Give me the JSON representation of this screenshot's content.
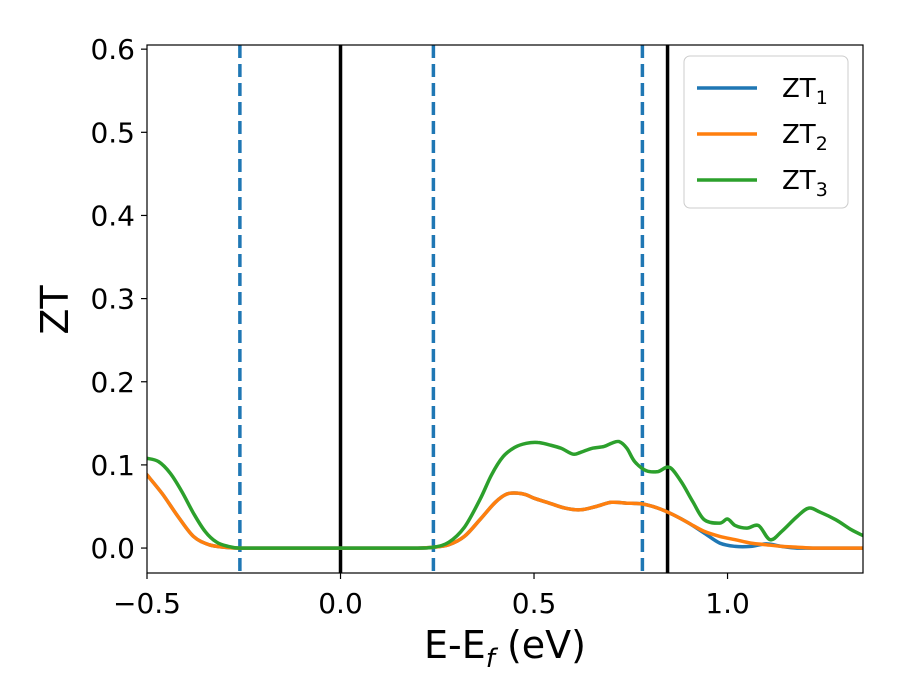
{
  "chart_data": {
    "type": "line",
    "title": "",
    "xlabel": "E-E",
    "xlabel_sub": "f",
    "xlabel_unit": " (eV)",
    "ylabel": "ZT",
    "xlim": [
      -0.5,
      1.35
    ],
    "ylim": [
      -0.03,
      0.605
    ],
    "xticks": [
      -0.5,
      0.0,
      0.5,
      1.0
    ],
    "xtick_labels": [
      "−0.5",
      "0.0",
      "0.5",
      "1.0"
    ],
    "yticks": [
      0.0,
      0.1,
      0.2,
      0.3,
      0.4,
      0.5,
      0.6
    ],
    "ytick_labels": [
      "0.0",
      "0.1",
      "0.2",
      "0.3",
      "0.4",
      "0.5",
      "0.6"
    ],
    "grid": false,
    "legend_position": "top-right",
    "vlines": [
      {
        "x": -0.26,
        "style": "dashed",
        "color": "#1f77b4"
      },
      {
        "x": 0.0,
        "style": "solid",
        "color": "#000000"
      },
      {
        "x": 0.24,
        "style": "dashed",
        "color": "#1f77b4"
      },
      {
        "x": 0.78,
        "style": "dashed",
        "color": "#1f77b4"
      },
      {
        "x": 0.845,
        "style": "solid",
        "color": "#000000"
      }
    ],
    "series": [
      {
        "name": "ZT",
        "sub": "1",
        "color": "#1f77b4",
        "x": [
          -0.5,
          -0.46,
          -0.42,
          -0.38,
          -0.34,
          -0.3,
          -0.26,
          -0.2,
          -0.1,
          0.0,
          0.1,
          0.2,
          0.24,
          0.28,
          0.32,
          0.36,
          0.4,
          0.43,
          0.46,
          0.48,
          0.5,
          0.54,
          0.58,
          0.62,
          0.66,
          0.7,
          0.74,
          0.78,
          0.82,
          0.86,
          0.9,
          0.94,
          0.98,
          1.02,
          1.06,
          1.1,
          1.14,
          1.18,
          1.22,
          1.26,
          1.3,
          1.35
        ],
        "y": [
          0.088,
          0.065,
          0.038,
          0.014,
          0.004,
          0.001,
          0.0,
          0.0,
          0.0,
          0.0,
          0.0,
          0.0,
          0.001,
          0.004,
          0.014,
          0.034,
          0.055,
          0.065,
          0.066,
          0.064,
          0.06,
          0.054,
          0.048,
          0.046,
          0.05,
          0.055,
          0.054,
          0.053,
          0.048,
          0.04,
          0.03,
          0.018,
          0.006,
          0.002,
          0.002,
          0.005,
          0.002,
          0.0,
          0.0,
          0.0,
          0.0,
          0.0
        ]
      },
      {
        "name": "ZT",
        "sub": "2",
        "color": "#ff7f0e",
        "x": [
          -0.5,
          -0.46,
          -0.42,
          -0.38,
          -0.34,
          -0.3,
          -0.26,
          -0.2,
          -0.1,
          0.0,
          0.1,
          0.2,
          0.24,
          0.28,
          0.32,
          0.36,
          0.4,
          0.43,
          0.46,
          0.48,
          0.5,
          0.54,
          0.58,
          0.62,
          0.66,
          0.7,
          0.74,
          0.78,
          0.82,
          0.86,
          0.9,
          0.94,
          0.98,
          1.02,
          1.06,
          1.1,
          1.14,
          1.18,
          1.22,
          1.26,
          1.3,
          1.35
        ],
        "y": [
          0.088,
          0.065,
          0.038,
          0.014,
          0.004,
          0.001,
          0.0,
          0.0,
          0.0,
          0.0,
          0.0,
          0.0,
          0.001,
          0.004,
          0.014,
          0.034,
          0.055,
          0.065,
          0.066,
          0.064,
          0.06,
          0.054,
          0.048,
          0.046,
          0.05,
          0.055,
          0.054,
          0.053,
          0.048,
          0.04,
          0.03,
          0.02,
          0.014,
          0.01,
          0.006,
          0.004,
          0.002,
          0.001,
          0.0,
          0.0,
          0.0,
          0.0
        ]
      },
      {
        "name": "ZT",
        "sub": "3",
        "color": "#2ca02c",
        "x": [
          -0.5,
          -0.47,
          -0.44,
          -0.41,
          -0.38,
          -0.35,
          -0.32,
          -0.29,
          -0.26,
          -0.2,
          -0.1,
          0.0,
          0.1,
          0.2,
          0.24,
          0.28,
          0.32,
          0.36,
          0.39,
          0.42,
          0.45,
          0.48,
          0.51,
          0.54,
          0.57,
          0.6,
          0.62,
          0.65,
          0.68,
          0.7,
          0.72,
          0.74,
          0.76,
          0.79,
          0.82,
          0.85,
          0.88,
          0.91,
          0.94,
          0.98,
          1.0,
          1.02,
          1.05,
          1.08,
          1.11,
          1.14,
          1.18,
          1.21,
          1.24,
          1.28,
          1.32,
          1.35
        ],
        "y": [
          0.108,
          0.104,
          0.09,
          0.068,
          0.042,
          0.02,
          0.007,
          0.002,
          0.0,
          0.0,
          0.0,
          0.0,
          0.0,
          0.0,
          0.001,
          0.007,
          0.025,
          0.058,
          0.088,
          0.11,
          0.121,
          0.126,
          0.127,
          0.124,
          0.12,
          0.113,
          0.115,
          0.12,
          0.122,
          0.126,
          0.128,
          0.12,
          0.104,
          0.093,
          0.092,
          0.097,
          0.08,
          0.056,
          0.034,
          0.03,
          0.035,
          0.027,
          0.024,
          0.027,
          0.01,
          0.02,
          0.038,
          0.048,
          0.043,
          0.034,
          0.022,
          0.015
        ]
      }
    ]
  }
}
